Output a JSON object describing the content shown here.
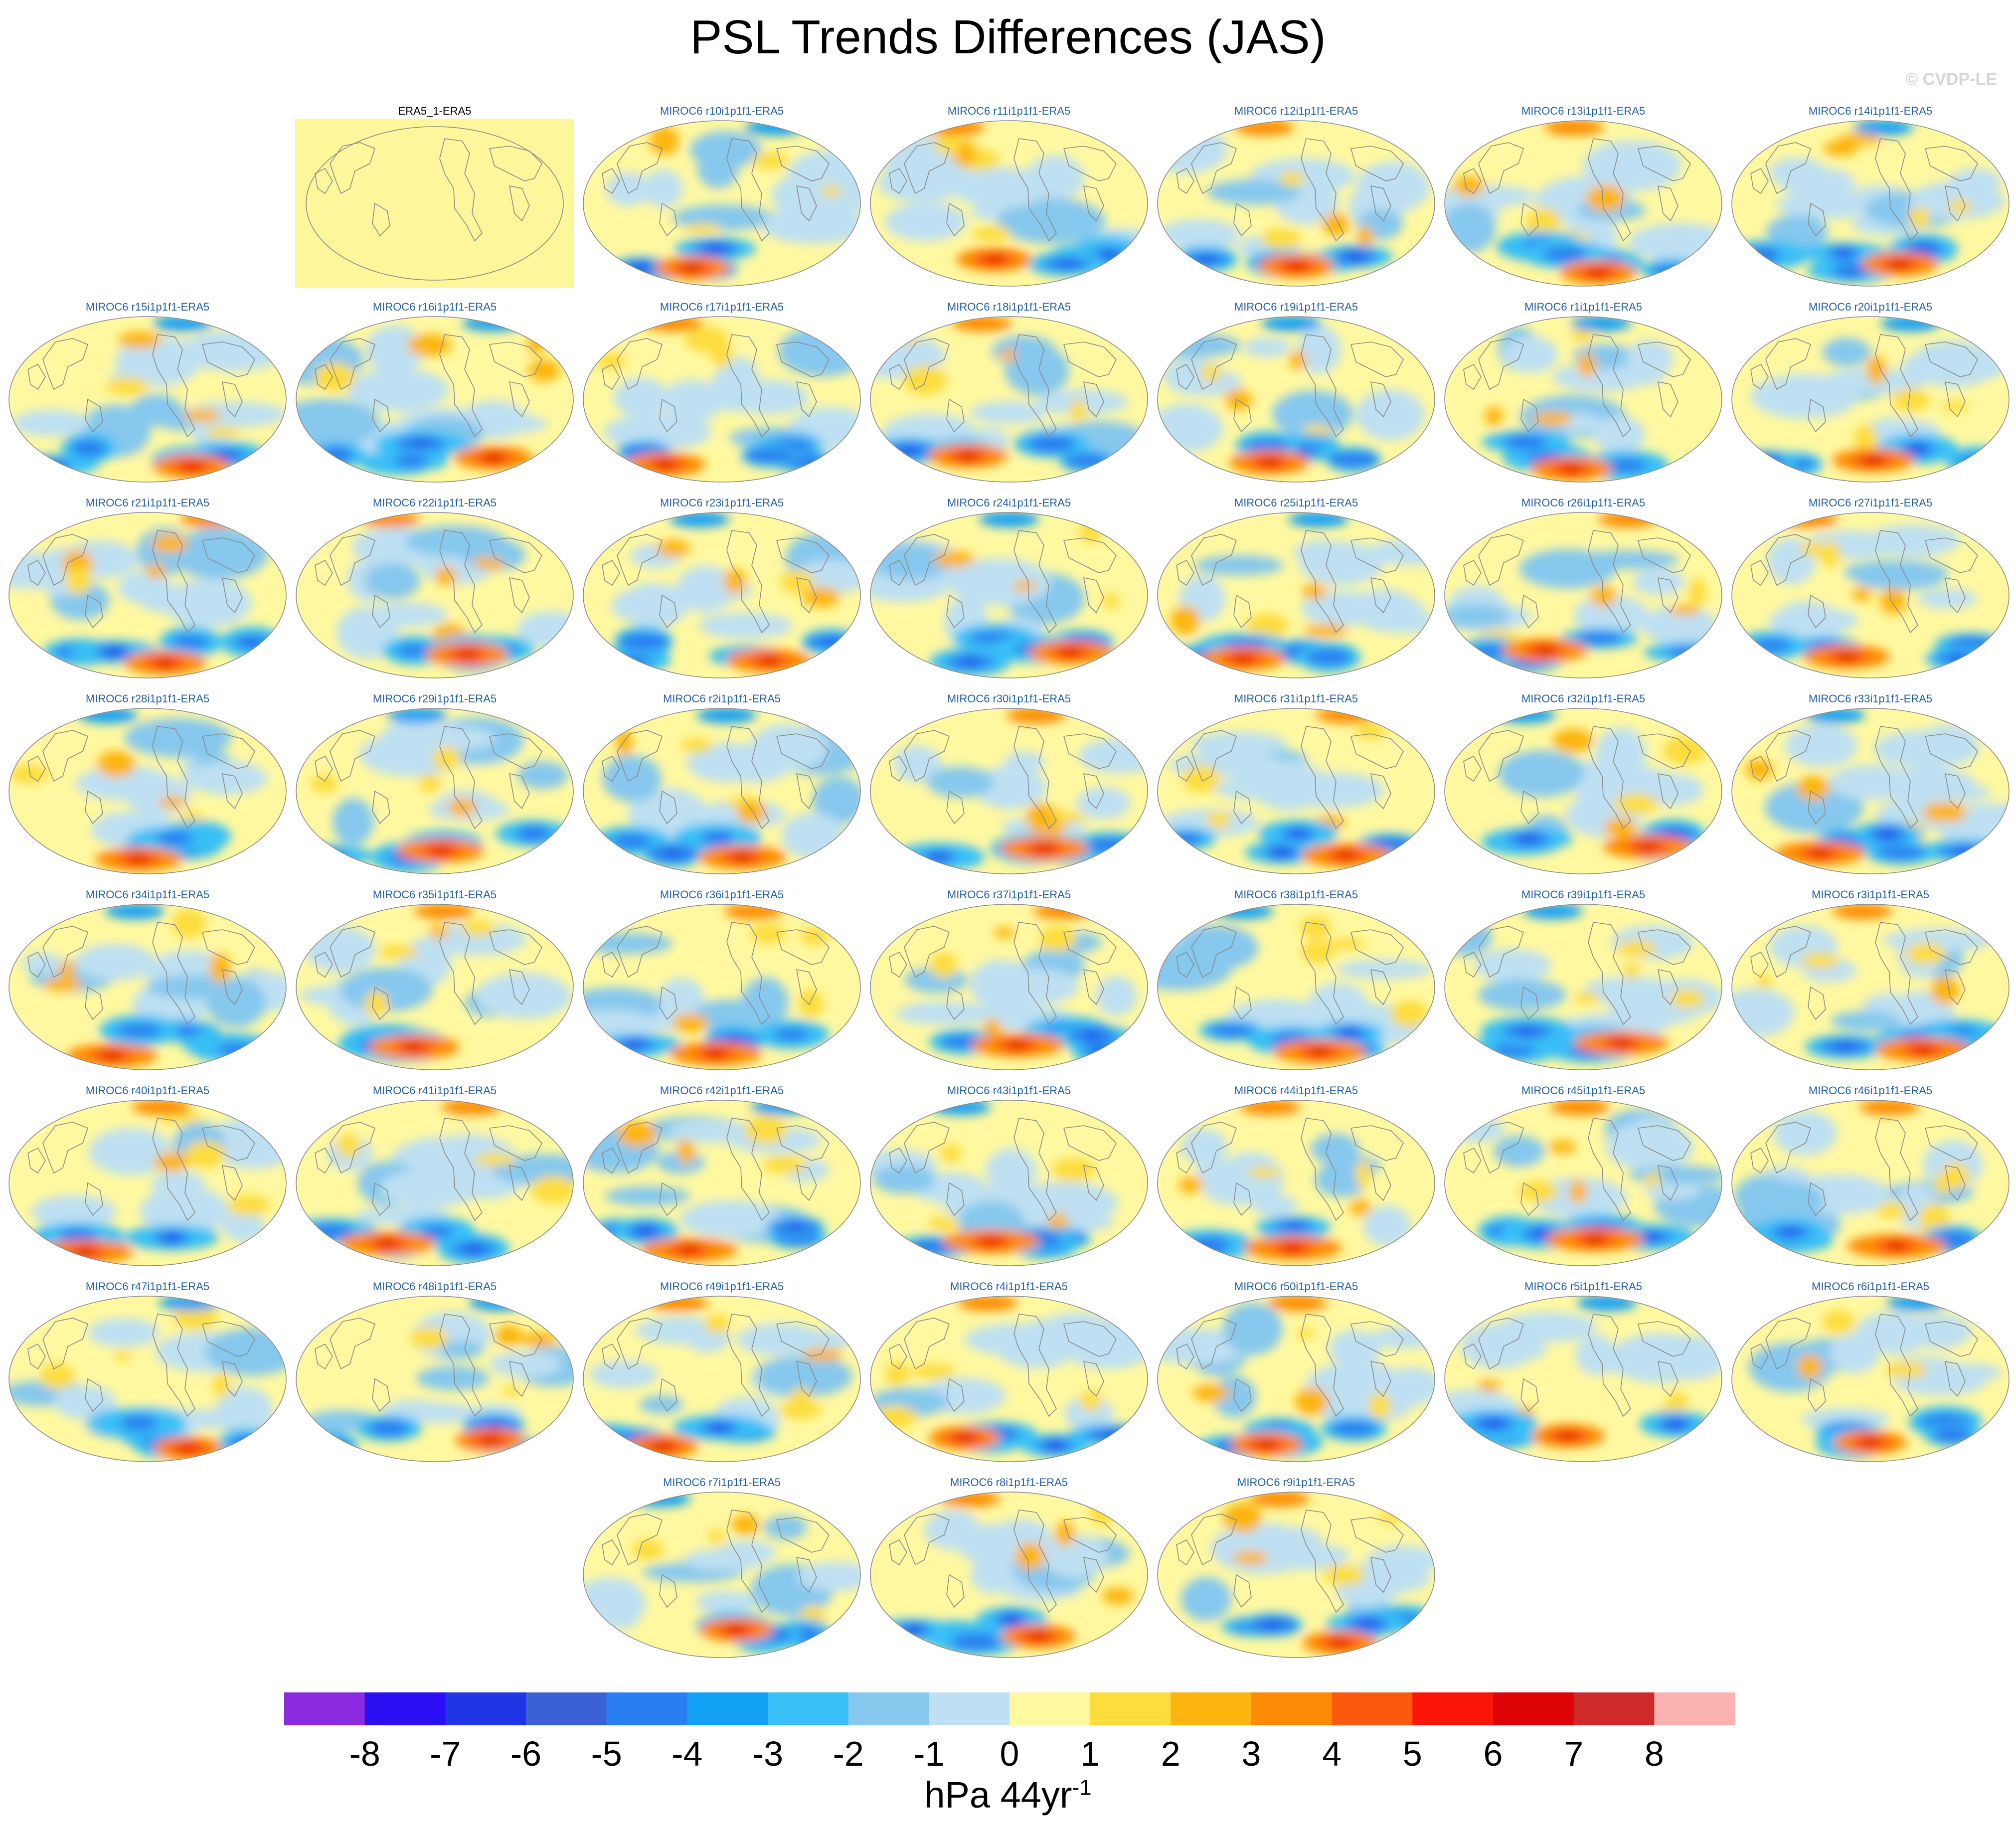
{
  "title": "PSL Trends Differences (JAS)",
  "copyright": "© CVDP-LE",
  "colors": {
    "label_obs": "#000000",
    "label_model": "#1f5fa8",
    "coast": "#8a8a8a",
    "obs_fill": "#fdf69a"
  },
  "panels": [
    {
      "label": "ERA5_1-ERA5",
      "type": "obs"
    },
    {
      "label": "MIROC6 r10i1p1f1-ERA5",
      "type": "model"
    },
    {
      "label": "MIROC6 r11i1p1f1-ERA5",
      "type": "model"
    },
    {
      "label": "MIROC6 r12i1p1f1-ERA5",
      "type": "model"
    },
    {
      "label": "MIROC6 r13i1p1f1-ERA5",
      "type": "model"
    },
    {
      "label": "MIROC6 r14i1p1f1-ERA5",
      "type": "model"
    },
    {
      "label": "MIROC6 r15i1p1f1-ERA5",
      "type": "model"
    },
    {
      "label": "MIROC6 r16i1p1f1-ERA5",
      "type": "model"
    },
    {
      "label": "MIROC6 r17i1p1f1-ERA5",
      "type": "model"
    },
    {
      "label": "MIROC6 r18i1p1f1-ERA5",
      "type": "model"
    },
    {
      "label": "MIROC6 r19i1p1f1-ERA5",
      "type": "model"
    },
    {
      "label": "MIROC6 r1i1p1f1-ERA5",
      "type": "model"
    },
    {
      "label": "MIROC6 r20i1p1f1-ERA5",
      "type": "model"
    },
    {
      "label": "MIROC6 r21i1p1f1-ERA5",
      "type": "model"
    },
    {
      "label": "MIROC6 r22i1p1f1-ERA5",
      "type": "model"
    },
    {
      "label": "MIROC6 r23i1p1f1-ERA5",
      "type": "model"
    },
    {
      "label": "MIROC6 r24i1p1f1-ERA5",
      "type": "model"
    },
    {
      "label": "MIROC6 r25i1p1f1-ERA5",
      "type": "model"
    },
    {
      "label": "MIROC6 r26i1p1f1-ERA5",
      "type": "model"
    },
    {
      "label": "MIROC6 r27i1p1f1-ERA5",
      "type": "model"
    },
    {
      "label": "MIROC6 r28i1p1f1-ERA5",
      "type": "model"
    },
    {
      "label": "MIROC6 r29i1p1f1-ERA5",
      "type": "model"
    },
    {
      "label": "MIROC6 r2i1p1f1-ERA5",
      "type": "model"
    },
    {
      "label": "MIROC6 r30i1p1f1-ERA5",
      "type": "model"
    },
    {
      "label": "MIROC6 r31i1p1f1-ERA5",
      "type": "model"
    },
    {
      "label": "MIROC6 r32i1p1f1-ERA5",
      "type": "model"
    },
    {
      "label": "MIROC6 r33i1p1f1-ERA5",
      "type": "model"
    },
    {
      "label": "MIROC6 r34i1p1f1-ERA5",
      "type": "model"
    },
    {
      "label": "MIROC6 r35i1p1f1-ERA5",
      "type": "model"
    },
    {
      "label": "MIROC6 r36i1p1f1-ERA5",
      "type": "model"
    },
    {
      "label": "MIROC6 r37i1p1f1-ERA5",
      "type": "model"
    },
    {
      "label": "MIROC6 r38i1p1f1-ERA5",
      "type": "model"
    },
    {
      "label": "MIROC6 r39i1p1f1-ERA5",
      "type": "model"
    },
    {
      "label": "MIROC6 r3i1p1f1-ERA5",
      "type": "model"
    },
    {
      "label": "MIROC6 r40i1p1f1-ERA5",
      "type": "model"
    },
    {
      "label": "MIROC6 r41i1p1f1-ERA5",
      "type": "model"
    },
    {
      "label": "MIROC6 r42i1p1f1-ERA5",
      "type": "model"
    },
    {
      "label": "MIROC6 r43i1p1f1-ERA5",
      "type": "model"
    },
    {
      "label": "MIROC6 r44i1p1f1-ERA5",
      "type": "model"
    },
    {
      "label": "MIROC6 r45i1p1f1-ERA5",
      "type": "model"
    },
    {
      "label": "MIROC6 r46i1p1f1-ERA5",
      "type": "model"
    },
    {
      "label": "MIROC6 r47i1p1f1-ERA5",
      "type": "model"
    },
    {
      "label": "MIROC6 r48i1p1f1-ERA5",
      "type": "model"
    },
    {
      "label": "MIROC6 r49i1p1f1-ERA5",
      "type": "model"
    },
    {
      "label": "MIROC6 r4i1p1f1-ERA5",
      "type": "model"
    },
    {
      "label": "MIROC6 r50i1p1f1-ERA5",
      "type": "model"
    },
    {
      "label": "MIROC6 r5i1p1f1-ERA5",
      "type": "model"
    },
    {
      "label": "MIROC6 r6i1p1f1-ERA5",
      "type": "model"
    },
    {
      "label": "MIROC6 r7i1p1f1-ERA5",
      "type": "model"
    },
    {
      "label": "MIROC6 r8i1p1f1-ERA5",
      "type": "model"
    },
    {
      "label": "MIROC6 r9i1p1f1-ERA5",
      "type": "model"
    }
  ],
  "colorbar": {
    "ticks": [
      "-8",
      "-7",
      "-6",
      "-5",
      "-4",
      "-3",
      "-2",
      "-1",
      "0",
      "1",
      "2",
      "3",
      "4",
      "5",
      "6",
      "7",
      "8"
    ],
    "colors": [
      "#8a2be2",
      "#2b0ff4",
      "#1f35e6",
      "#3a62d6",
      "#2a7ff0",
      "#12a0f4",
      "#38bff6",
      "#86c8ee",
      "#bee0f2",
      "#fff8a0",
      "#fcdd3c",
      "#fcb50e",
      "#fd8b06",
      "#fb5a0e",
      "#fb1408",
      "#dd0306",
      "#cf2a2a",
      "#fdb2b2"
    ],
    "label": "hPa 44yr",
    "label_exponent": "-1"
  }
}
